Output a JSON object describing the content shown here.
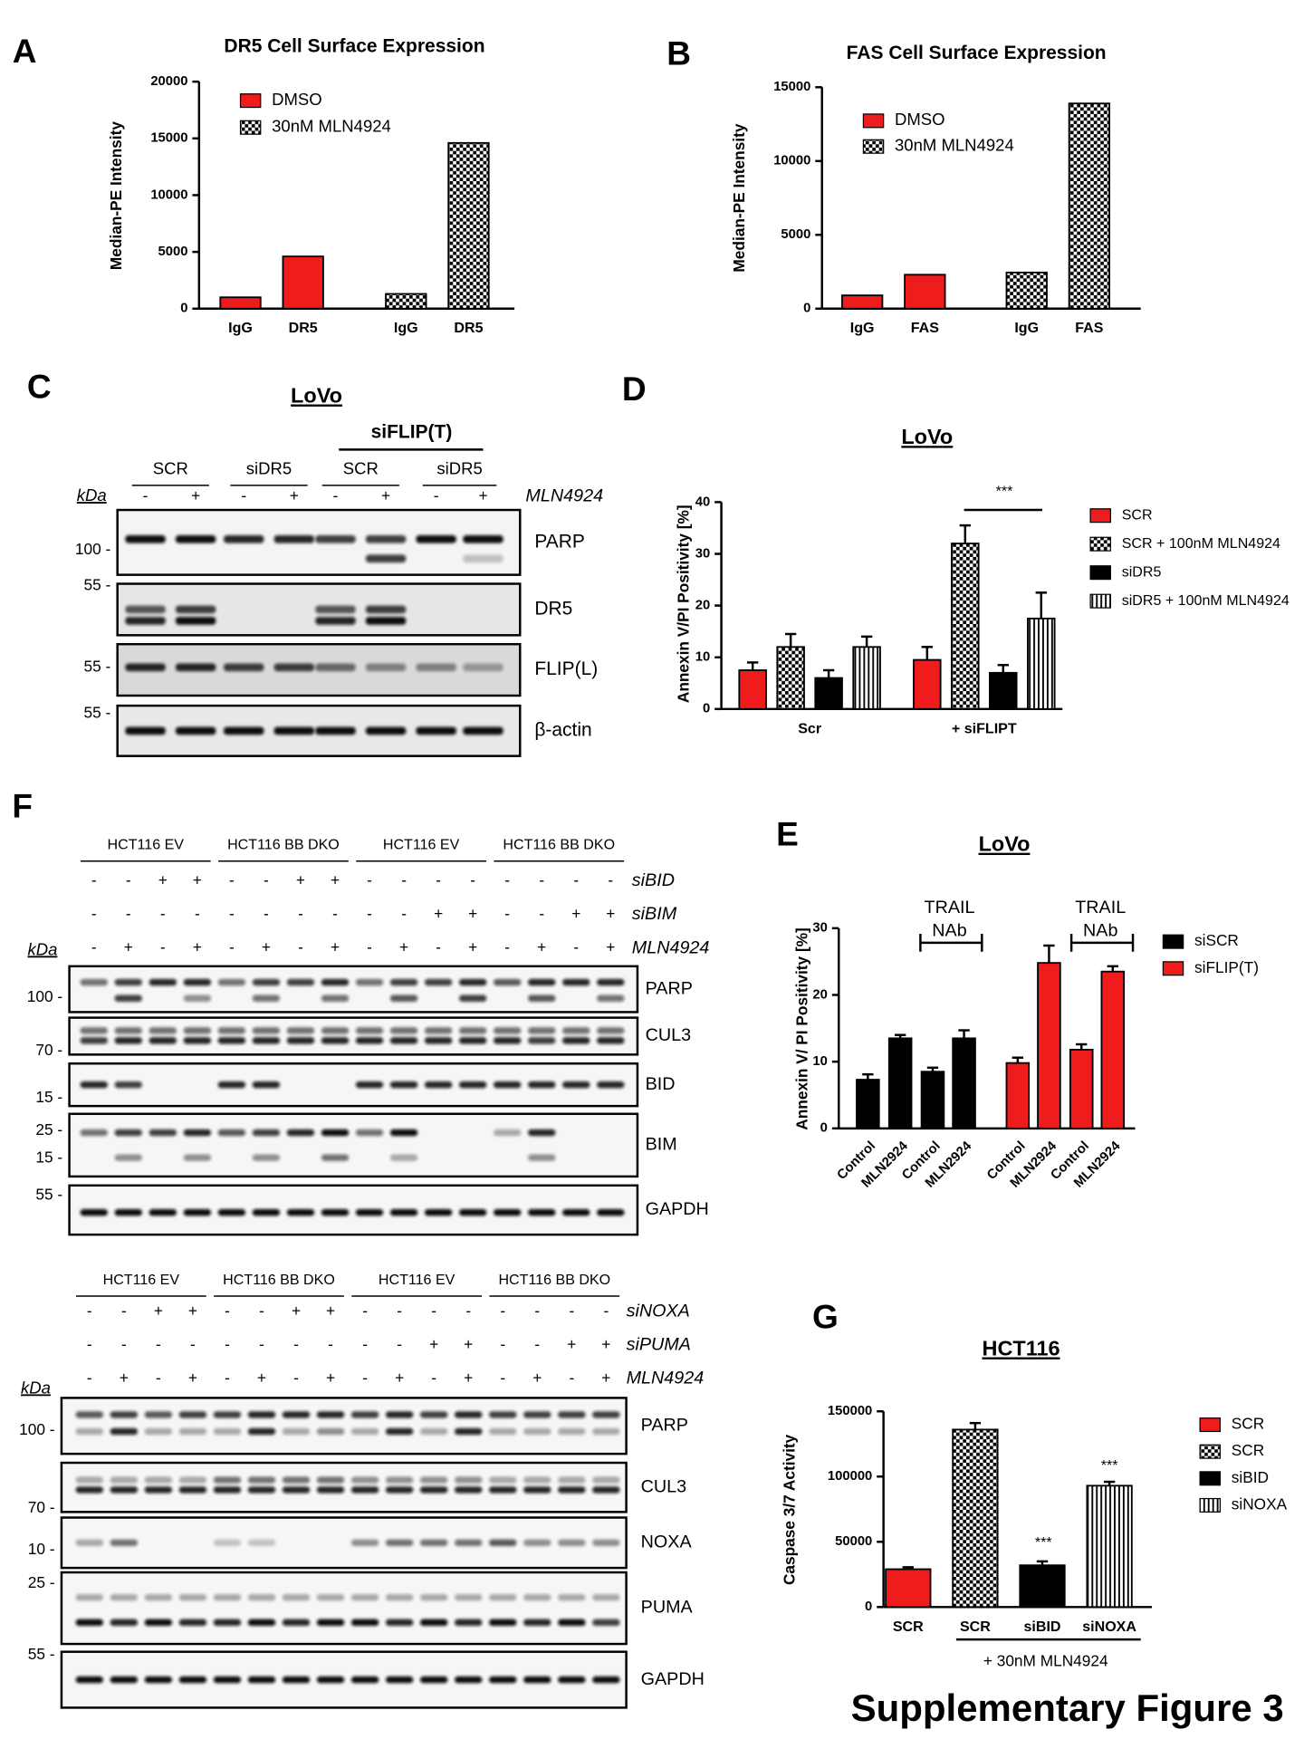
{
  "chart_data": [
    {
      "type": "bar",
      "panel": "A",
      "title": "DR5 Cell Surface Expression",
      "y_label": "Median-PE Intensity",
      "categories": [
        "IgG",
        "DR5",
        "IgG",
        "DR5"
      ],
      "series": [
        {
          "name": "DMSO",
          "color": "#ee1c1c",
          "values": [
            1000,
            4600,
            null,
            null
          ]
        },
        {
          "name": "30nM MLN4924",
          "color": "#000000",
          "pattern": "checkerboard",
          "values": [
            null,
            null,
            1300,
            14600
          ]
        }
      ],
      "ylim": [
        0,
        20000
      ],
      "yticks": [
        0,
        5000,
        10000,
        15000,
        20000
      ]
    },
    {
      "type": "bar",
      "panel": "B",
      "title": "FAS Cell Surface Expression",
      "y_label": "Median-PE Intensity",
      "categories": [
        "IgG",
        "FAS",
        "IgG",
        "FAS"
      ],
      "series": [
        {
          "name": "DMSO",
          "color": "#ee1c1c",
          "values": [
            900,
            2300,
            null,
            null
          ]
        },
        {
          "name": "30nM MLN4924",
          "color": "#000000",
          "pattern": "checkerboard",
          "values": [
            null,
            null,
            2450,
            13900
          ]
        }
      ],
      "ylim": [
        0,
        15000
      ],
      "yticks": [
        0,
        5000,
        10000,
        15000
      ]
    },
    {
      "type": "bar",
      "panel": "D",
      "title": "LoVo",
      "y_label": "Annexin V/PI Positivity [%]",
      "categories": [
        "Scr",
        "+ siFLIPT"
      ],
      "series": [
        {
          "name": "SCR",
          "color": "#ee1c1c",
          "values": [
            7.5,
            9.5
          ],
          "errors": [
            1.5,
            2.5
          ]
        },
        {
          "name": "SCR + 100nM MLN4924",
          "color": "#000000",
          "pattern": "checkerboard",
          "values": [
            12,
            32
          ],
          "errors": [
            2.5,
            3.5
          ]
        },
        {
          "name": "siDR5",
          "color": "#000000",
          "values": [
            6,
            7
          ],
          "errors": [
            1.5,
            1.5
          ]
        },
        {
          "name": "siDR5 + 100nM MLN4924",
          "color": "#000000",
          "pattern": "vertical-stripes",
          "values": [
            12,
            17.5
          ],
          "errors": [
            2,
            5
          ]
        }
      ],
      "annotations": [
        "***"
      ],
      "ylim": [
        0,
        40
      ],
      "yticks": [
        0,
        10,
        20,
        30,
        40
      ]
    },
    {
      "type": "bar",
      "panel": "E",
      "title": "LoVo",
      "y_label": "Annexin V/ PI Positivity [%]",
      "categories": [
        "Control",
        "MLN2924",
        "Control",
        "MLN2924",
        "Control",
        "MLN2924",
        "Control",
        "MLN2924"
      ],
      "series": [
        {
          "name": "siSCR",
          "color": "#000000",
          "values": [
            7.3,
            13.5,
            8.5,
            13.5,
            null,
            null,
            null,
            null
          ],
          "errors": [
            0.8,
            0.5,
            0.6,
            1.2,
            null,
            null,
            null,
            null
          ]
        },
        {
          "name": "siFLIP(T)",
          "color": "#ee1c1c",
          "values": [
            null,
            null,
            null,
            null,
            9.8,
            24.8,
            11.8,
            23.5
          ],
          "errors": [
            null,
            null,
            null,
            null,
            0.8,
            2.6,
            0.8,
            0.8
          ]
        }
      ],
      "annotations": [
        "TRAIL",
        "NAb",
        "TRAIL",
        "NAb"
      ],
      "ylim": [
        0,
        30
      ],
      "yticks": [
        0,
        10,
        20,
        30
      ]
    },
    {
      "type": "bar",
      "panel": "G",
      "title": "HCT116",
      "y_label": "Caspase 3/7 Activity",
      "categories": [
        "SCR",
        "SCR",
        "siBID",
        "siNOXA"
      ],
      "series": [
        {
          "name": "SCR",
          "color": "#ee1c1c",
          "values": [
            29000,
            null,
            null,
            null
          ],
          "errors": [
            1500,
            null,
            null,
            null
          ]
        },
        {
          "name": "SCR",
          "color": "#000000",
          "pattern": "checkerboard",
          "values": [
            null,
            136000,
            null,
            null
          ],
          "errors": [
            null,
            5000,
            null,
            null
          ]
        },
        {
          "name": "siBID",
          "color": "#000000",
          "values": [
            null,
            null,
            32000,
            null
          ],
          "errors": [
            null,
            null,
            3000,
            null
          ]
        },
        {
          "name": "siNOXA",
          "color": "#000000",
          "pattern": "vertical-stripes",
          "values": [
            null,
            null,
            null,
            93000
          ],
          "errors": [
            null,
            null,
            null,
            3000
          ]
        }
      ],
      "annotations": [
        "***",
        "***",
        "+ 30nM MLN4924"
      ],
      "ylim": [
        0,
        150000
      ],
      "yticks": [
        0,
        50000,
        100000,
        150000
      ]
    }
  ],
  "blots": [
    {
      "panel": "C",
      "title": "LoVo",
      "super_group": "siFLIP(T)",
      "groups": [
        "SCR",
        "siDR5",
        "SCR",
        "siDR5"
      ],
      "kda": "kDa",
      "rows": [
        {
          "label": "MLN4924",
          "signs": [
            "-",
            "+",
            "-",
            "+",
            "-",
            "+",
            "-",
            "+"
          ]
        }
      ],
      "bands": [
        {
          "name": "PARP",
          "markers": [
            "100 -"
          ]
        },
        {
          "name": "DR5",
          "markers": [
            "55 -"
          ]
        },
        {
          "name": "FLIP(L)",
          "markers": [
            "55 -"
          ]
        },
        {
          "name": "β-actin",
          "markers": [
            "55 -"
          ]
        }
      ]
    },
    {
      "panel": "F",
      "groups": [
        "HCT116 EV",
        "HCT116 BB DKO",
        "HCT116 EV",
        "HCT116 BB DKO"
      ],
      "kda": "kDa",
      "rows": [
        {
          "label": "siBID",
          "signs": [
            "-",
            "-",
            "+",
            "+",
            "-",
            "-",
            "+",
            "+",
            "-",
            "-",
            "-",
            "-",
            "-",
            "-",
            "-",
            "-"
          ]
        },
        {
          "label": "siBIM",
          "signs": [
            "-",
            "-",
            "-",
            "-",
            "-",
            "-",
            "-",
            "-",
            "-",
            "-",
            "+",
            "+",
            "-",
            "-",
            "+",
            "+"
          ]
        },
        {
          "label": "MLN4924",
          "signs": [
            "-",
            "+",
            "-",
            "+",
            "-",
            "+",
            "-",
            "+",
            "-",
            "+",
            "-",
            "+",
            "-",
            "+",
            "-",
            "+"
          ]
        }
      ],
      "bands": [
        {
          "name": "PARP",
          "markers": [
            "100 -"
          ]
        },
        {
          "name": "CUL3",
          "markers": [
            "70 -"
          ]
        },
        {
          "name": "BID",
          "markers": [
            "15 -"
          ]
        },
        {
          "name": "BIM",
          "markers": [
            "25 -",
            "15 -"
          ]
        },
        {
          "name": "GAPDH",
          "markers": [
            "55 -"
          ]
        }
      ]
    },
    {
      "groups": [
        "HCT116 EV",
        "HCT116 BB DKO",
        "HCT116 EV",
        "HCT116 BB DKO"
      ],
      "kda": "kDa",
      "rows": [
        {
          "label": "siNOXA",
          "signs": [
            "-",
            "-",
            "+",
            "+",
            "-",
            "-",
            "+",
            "+",
            "-",
            "-",
            "-",
            "-",
            "-",
            "-",
            "-",
            "-"
          ]
        },
        {
          "label": "siPUMA",
          "signs": [
            "-",
            "-",
            "-",
            "-",
            "-",
            "-",
            "-",
            "-",
            "-",
            "-",
            "+",
            "+",
            "-",
            "-",
            "+",
            "+"
          ]
        },
        {
          "label": "MLN4924",
          "signs": [
            "-",
            "+",
            "-",
            "+",
            "-",
            "+",
            "-",
            "+",
            "-",
            "+",
            "-",
            "+",
            "-",
            "+",
            "-",
            "+"
          ]
        }
      ],
      "bands": [
        {
          "name": "PARP",
          "markers": [
            "100 -"
          ]
        },
        {
          "name": "CUL3",
          "markers": [
            "70 -"
          ]
        },
        {
          "name": "NOXA",
          "markers": [
            "10 -"
          ]
        },
        {
          "name": "PUMA",
          "markers": [
            "25 -"
          ]
        },
        {
          "name": "GAPDH",
          "markers": [
            "55 -"
          ]
        }
      ]
    }
  ],
  "caption": "Supplementary Figure 3"
}
